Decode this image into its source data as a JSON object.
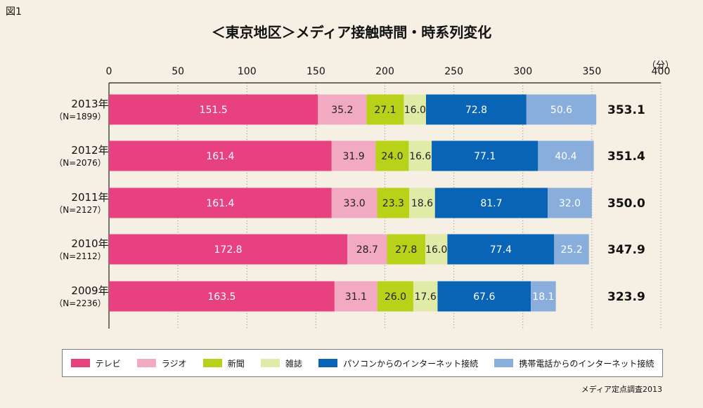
{
  "figure_label": "図1",
  "unit_label": "（分）",
  "source": "メディア定点調査2013",
  "colors": {
    "テレビ": "#e8417f",
    "ラジオ": "#f2a9c2",
    "新聞": "#b8d21a",
    "雑誌": "#e0eba8",
    "パソコンからのインターネット接続": "#0a64b5",
    "携帯電話からのインターネット接続": "#8aaedc"
  },
  "chart_data": {
    "type": "bar",
    "orientation": "horizontal",
    "stacked": true,
    "title": "＜東京地区＞メディア接触時間・時系列変化",
    "xlim": [
      0,
      400
    ],
    "xticks": [
      0,
      50,
      100,
      150,
      200,
      250,
      300,
      350,
      400
    ],
    "categories": [
      {
        "year": "2013年",
        "n": "（N=1899）",
        "total": "353.1"
      },
      {
        "year": "2012年",
        "n": "（N=2076）",
        "total": "351.4"
      },
      {
        "year": "2011年",
        "n": "（N=2127）",
        "total": "350.0"
      },
      {
        "year": "2010年",
        "n": "（N=2112）",
        "total": "347.9"
      },
      {
        "year": "2009年",
        "n": "（N=2236）",
        "total": "323.9"
      }
    ],
    "series": [
      {
        "name": "テレビ",
        "values": [
          151.5,
          161.4,
          161.4,
          172.8,
          163.5
        ]
      },
      {
        "name": "ラジオ",
        "values": [
          35.2,
          31.9,
          33.0,
          28.7,
          31.1
        ]
      },
      {
        "name": "新聞",
        "values": [
          27.1,
          24.0,
          23.3,
          27.8,
          26.0
        ]
      },
      {
        "name": "雑誌",
        "values": [
          16.0,
          16.6,
          18.6,
          16.0,
          17.6
        ]
      },
      {
        "name": "パソコンからのインターネット接続",
        "values": [
          72.8,
          77.1,
          81.7,
          77.4,
          67.6
        ]
      },
      {
        "name": "携帯電話からのインターネット接続",
        "values": [
          50.6,
          40.4,
          32.0,
          25.2,
          18.1
        ]
      }
    ]
  }
}
